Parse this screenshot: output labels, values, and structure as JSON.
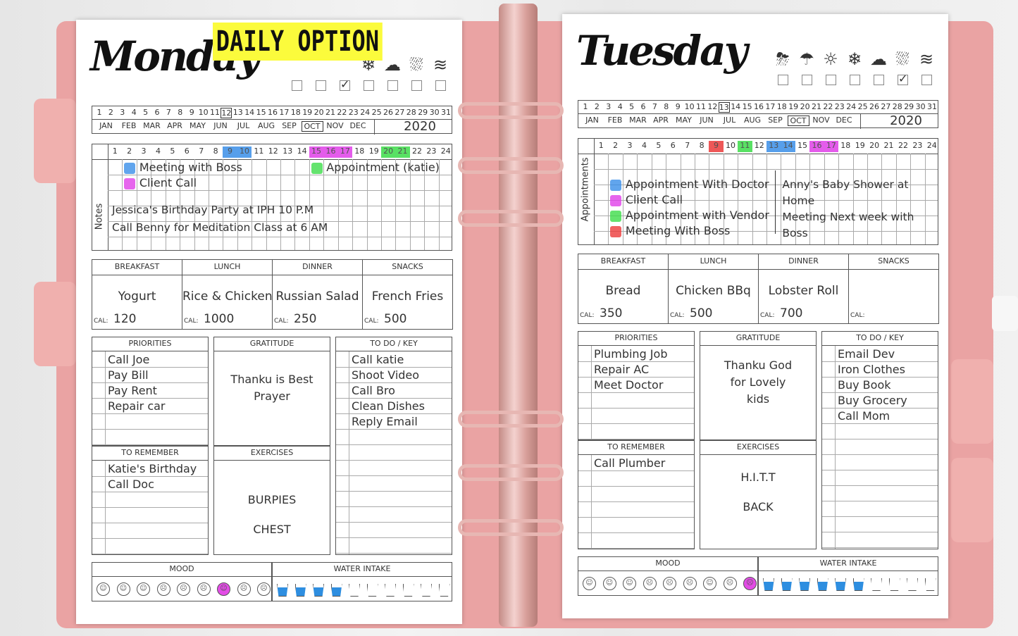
{
  "badge": "DAILY OPTION",
  "colors": {
    "blue": "#3a8fe8",
    "magenta": "#e040e8",
    "green": "#3ddc4a",
    "red": "#ec3b3b",
    "cover": "#eaa3a3",
    "badge": "#fbfb3c"
  },
  "months": [
    "JAN",
    "FEB",
    "MAR",
    "APR",
    "MAY",
    "JUN",
    "JUL",
    "AUG",
    "SEP",
    "OCT",
    "NOV",
    "DEC"
  ],
  "meal_headers": [
    "BREAKFAST",
    "LUNCH",
    "DINNER",
    "SNACKS"
  ],
  "cal_label": "CAL:",
  "section_labels": {
    "priorities": "PRIORITIES",
    "gratitude": "GRATITUDE",
    "todo": "TO DO / KEY",
    "remember": "TO REMEMBER",
    "exercises": "EXERCISES",
    "mood": "MOOD",
    "water": "WATER INTAKE"
  },
  "pages": [
    {
      "day": "Monday",
      "side_label": "Notes",
      "selected_date": 12,
      "selected_month": "OCT",
      "year": "2020",
      "weather_icons": [
        "snowflake-icon",
        "cloud-icon",
        "cloud-rain-icon",
        "wind-icon"
      ],
      "weather_checked": 3,
      "weather_boxes": 7,
      "hour_highlights": {
        "9": "blue",
        "10": "blue",
        "15": "magenta",
        "16": "magenta",
        "17": "magenta",
        "20": "green",
        "21": "green"
      },
      "entries": [
        {
          "color": "blue",
          "text": "Meeting with Boss"
        },
        {
          "color": "magenta",
          "text": "Client Call"
        },
        {
          "color": "green",
          "text": "Appointment (katie)"
        }
      ],
      "notes": [
        "Jessica's Birthday Party at IPH  10 P.M",
        "Call Benny for Meditation Class at 6 AM"
      ],
      "meals": [
        {
          "food": "Yogurt",
          "cal": "120"
        },
        {
          "food": "Rice & Chicken",
          "cal": "1000"
        },
        {
          "food": "Russian Salad",
          "cal": "250"
        },
        {
          "food": "French Fries",
          "cal": "500"
        }
      ],
      "priorities": [
        "Call Joe",
        "Pay Bill",
        "Pay Rent",
        "Repair car"
      ],
      "gratitude": [
        "Thanku is Best",
        "Prayer"
      ],
      "todo": [
        "Call katie",
        "Shoot Video",
        "Call Bro",
        "Clean Dishes",
        "Reply Email"
      ],
      "remember": [
        "Katie's Birthday",
        "Call Doc"
      ],
      "exercises": [
        "BURPIES",
        "CHEST"
      ],
      "mood_selected": 7,
      "water_filled": 4
    },
    {
      "day": "Tuesday",
      "side_label": "Appointments",
      "selected_date": 13,
      "selected_month": "OCT",
      "year": "2020",
      "weather_icons": [
        "thunderstorm-icon",
        "rain-icon",
        "sun-icon",
        "snowflake-icon",
        "cloud-icon",
        "cloud-rain-icon",
        "wind-icon"
      ],
      "weather_checked": 6,
      "weather_boxes": 7,
      "hour_highlights": {
        "9": "red",
        "11": "green",
        "13": "blue",
        "14": "blue",
        "16": "magenta",
        "17": "magenta"
      },
      "entries": [
        {
          "color": "blue",
          "text": "Appointment With Doctor"
        },
        {
          "color": "magenta",
          "text": "Client Call"
        },
        {
          "color": "green",
          "text": "Appointment with Vendor"
        },
        {
          "color": "red",
          "text": "Meeting With Boss"
        }
      ],
      "notes": [
        "Anny's Baby Shower at",
        "Home",
        "Meeting Next week with",
        "Boss"
      ],
      "meals": [
        {
          "food": "Bread",
          "cal": "350"
        },
        {
          "food": "Chicken BBq",
          "cal": "500"
        },
        {
          "food": "Lobster Roll",
          "cal": "700"
        },
        {
          "food": "",
          "cal": ""
        }
      ],
      "priorities": [
        "Plumbing Job",
        "Repair AC",
        "Meet Doctor"
      ],
      "gratitude": [
        "Thanku God",
        "for Lovely",
        "kids"
      ],
      "todo": [
        "Email Dev",
        "Iron Clothes",
        "Buy Book",
        "Buy Grocery",
        "Call Mom"
      ],
      "remember": [
        "Call Plumber"
      ],
      "exercises": [
        "H.I.T.T",
        "BACK"
      ],
      "mood_selected": 9,
      "water_filled": 6
    }
  ]
}
